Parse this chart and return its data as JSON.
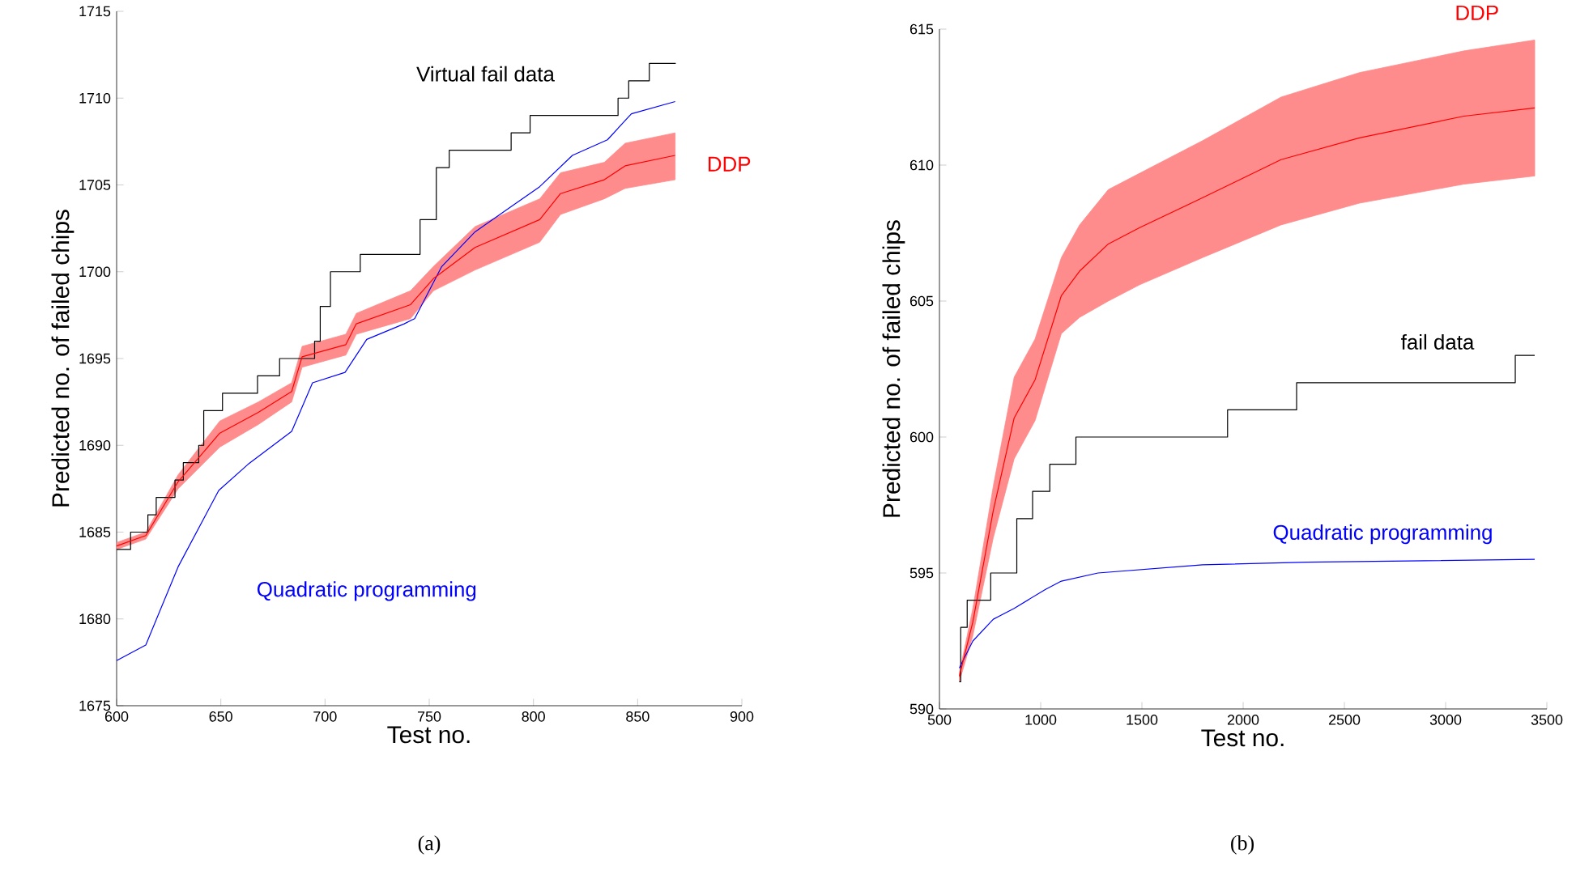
{
  "chart_data": [
    {
      "type": "line",
      "xlabel": "Test no.",
      "ylabel": "Predicted no. of failed chips",
      "annotations": [
        "(a)"
      ],
      "xlim": [
        600,
        900
      ],
      "ylim": [
        1675,
        1715
      ],
      "xticks": [
        600,
        650,
        700,
        750,
        800,
        850,
        900
      ],
      "yticks": [
        1675,
        1680,
        1685,
        1690,
        1695,
        1700,
        1705,
        1710,
        1715
      ],
      "series": [
        {
          "name": "Virtual fail data",
          "type": "step",
          "color": "#000000",
          "x": [
            600,
            606.7,
            615,
            619,
            628,
            632,
            639.4,
            641.8,
            650.8,
            667.6,
            678.2,
            695,
            697.7,
            702.6,
            716.9,
            745.6,
            753.4,
            759.6,
            789.3,
            798.4,
            840.6,
            845.7,
            855.6,
            868.3
          ],
          "values": [
            1684,
            1685,
            1686,
            1687,
            1688,
            1689,
            1690,
            1692,
            1693,
            1694,
            1695,
            1696,
            1698,
            1700,
            1701,
            1703,
            1706,
            1707,
            1708,
            1709,
            1710,
            1711,
            1712,
            1712
          ]
        },
        {
          "name": "Quadratic programming",
          "color": "#0000ff",
          "x": [
            600,
            614,
            629.5,
            649,
            663,
            684,
            694,
            709.6,
            720,
            738,
            743,
            756,
            772,
            803,
            818.7,
            835.5,
            847,
            868
          ],
          "values": [
            1677.6,
            1678.5,
            1683,
            1687.4,
            1688.9,
            1690.8,
            1693.6,
            1694.2,
            1696.1,
            1697,
            1697.3,
            1700.3,
            1702.3,
            1704.9,
            1706.7,
            1707.6,
            1709.1,
            1709.8
          ]
        },
        {
          "name": "DDP",
          "color": "#ff0000",
          "x": [
            600,
            614,
            629.5,
            649.5,
            668,
            684,
            689,
            710,
            715,
            741,
            752,
            772,
            803,
            813,
            834,
            844,
            868
          ],
          "lower": [
            1684,
            1684.6,
            1687.5,
            1689.9,
            1691.2,
            1692.5,
            1694.5,
            1695.2,
            1696.4,
            1697.3,
            1698.9,
            1700.1,
            1701.7,
            1703.3,
            1704.2,
            1704.8,
            1705.3
          ],
          "upper": [
            1684.4,
            1685,
            1688.3,
            1691.4,
            1692.5,
            1693.6,
            1695.7,
            1696.4,
            1697.6,
            1698.9,
            1700.3,
            1702.6,
            1704.2,
            1705.7,
            1706.3,
            1707.4,
            1708
          ],
          "values": [
            1684.2,
            1684.8,
            1687.9,
            1690.7,
            1691.9,
            1693.1,
            1695.1,
            1695.8,
            1697,
            1698.1,
            1699.6,
            1701.4,
            1703,
            1704.5,
            1705.3,
            1706.1,
            1706.7
          ]
        }
      ]
    },
    {
      "type": "line",
      "xlabel": "Test no.",
      "ylabel": "Predicted no. of failed chips",
      "annotations": [
        "(b)"
      ],
      "xlim": [
        500,
        3500
      ],
      "ylim": [
        590,
        615
      ],
      "xticks": [
        500,
        1000,
        1500,
        2000,
        2500,
        3000,
        3500
      ],
      "yticks": [
        590,
        595,
        600,
        605,
        610,
        615
      ],
      "series": [
        {
          "name": "fail data",
          "type": "step",
          "color": "#000000",
          "x": [
            598,
            605,
            637,
            753,
            882,
            960,
            1045,
            1174,
            1923,
            2264,
            3344,
            3440
          ],
          "values": [
            591,
            593,
            594,
            595,
            597,
            598,
            599,
            600,
            601,
            602,
            603,
            603
          ]
        },
        {
          "name": "Quadratic programming",
          "color": "#0000ff",
          "x": [
            598,
            665,
            766,
            869,
            1024,
            1102,
            1283,
            1800,
            2316,
            3440
          ],
          "values": [
            591.5,
            592.5,
            593.3,
            593.7,
            594.4,
            594.7,
            595,
            595.3,
            595.4,
            595.5
          ]
        },
        {
          "name": "DDP",
          "color": "#ff0000",
          "x": [
            598,
            665,
            766,
            869,
            972,
            1102,
            1192,
            1334,
            1489,
            1800,
            2187,
            2574,
            3091,
            3440
          ],
          "lower": [
            591,
            592.7,
            596.3,
            599.2,
            600.6,
            603.8,
            604.4,
            605,
            605.6,
            606.6,
            607.8,
            608.6,
            609.3,
            609.6
          ],
          "upper": [
            591.3,
            593.7,
            598.2,
            602.2,
            603.6,
            606.6,
            607.8,
            609.1,
            609.7,
            610.9,
            612.5,
            613.4,
            614.2,
            614.6
          ],
          "values": [
            591.2,
            593.2,
            597.3,
            600.7,
            602.1,
            605.2,
            606.1,
            607.1,
            607.7,
            608.8,
            610.2,
            611,
            611.8,
            612.1
          ]
        }
      ]
    }
  ]
}
